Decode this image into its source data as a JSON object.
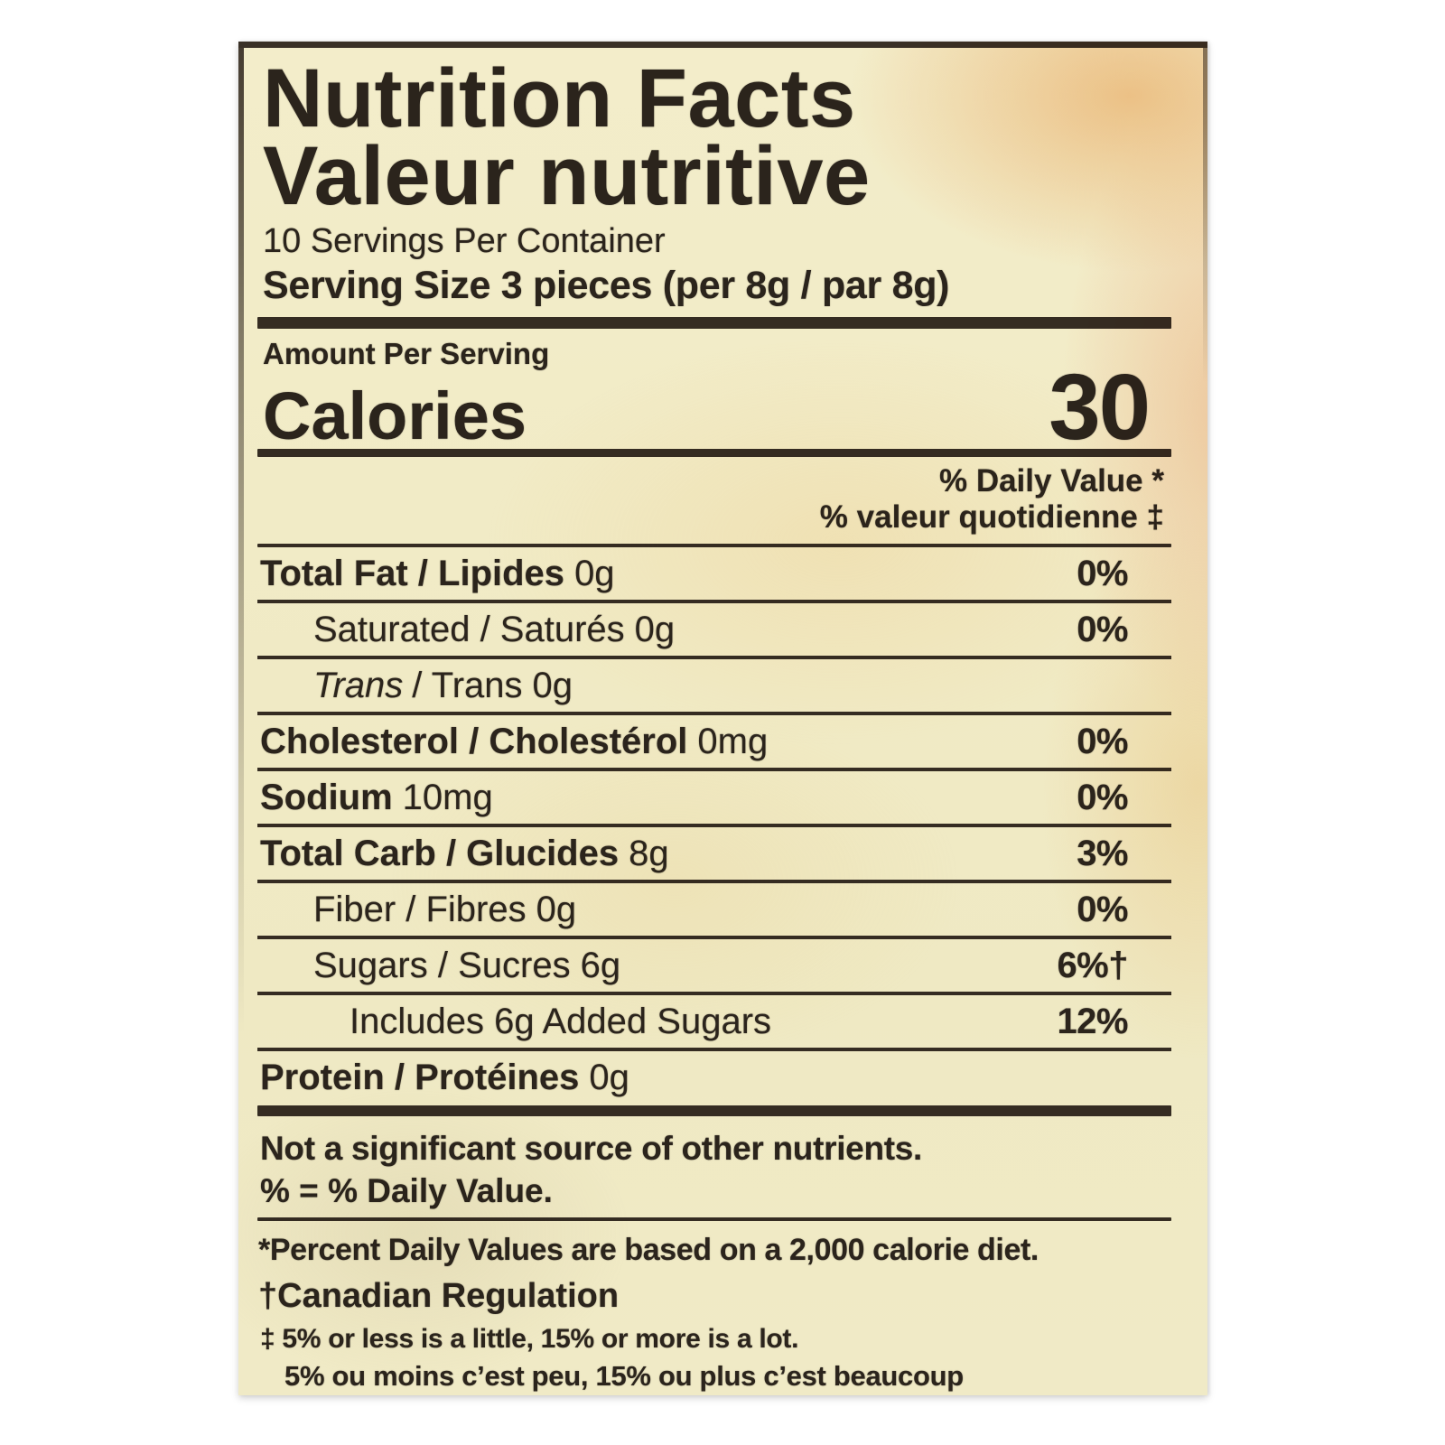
{
  "colors": {
    "page_bg": "#ffffff",
    "label_bg": "#f1ebc6",
    "ink": "#2b241c",
    "peach_tint": "#f6c494"
  },
  "label": {
    "title_en": "Nutrition Facts",
    "title_fr": "Valeur nutritive",
    "servings_per_container": "10 Servings Per Container",
    "serving_size": "Serving Size 3 pieces (per 8g / par 8g)",
    "amount_per_serving": "Amount Per Serving",
    "calories_label": "Calories",
    "calories_value": "30",
    "daily_value_en": "% Daily Value *",
    "daily_value_fr": "% valeur quotidienne ‡",
    "rows": [
      {
        "name": "Total Fat / Lipides",
        "amount": "0g",
        "dv": "0%"
      },
      {
        "name": "Saturated / Saturés",
        "amount": "0g",
        "dv": "0%"
      },
      {
        "name_italic": "Trans",
        "name": "/ Trans",
        "amount": "0g",
        "dv": ""
      },
      {
        "name": "Cholesterol / Cholestérol",
        "amount": "0mg",
        "dv": "0%"
      },
      {
        "name": "Sodium",
        "amount": "10mg",
        "dv": "0%"
      },
      {
        "name": "Total Carb / Glucides",
        "amount": "8g",
        "dv": "3%"
      },
      {
        "name": "Fiber / Fibres",
        "amount": "0g",
        "dv": "0%"
      },
      {
        "name": "Sugars / Sucres",
        "amount": "6g",
        "dv": "6%†"
      },
      {
        "name": "Includes 6g Added Sugars",
        "amount": "",
        "dv": "12%"
      },
      {
        "name": "Protein / Protéines",
        "amount": "0g",
        "dv": ""
      }
    ],
    "footnotes": {
      "not_significant": "Not a significant source of other nutrients.",
      "percent_dv": "% = % Daily Value.",
      "asterisk": "*Percent Daily Values are based on a 2,000 calorie diet.",
      "dagger": "†Canadian Regulation",
      "double_dagger_en": "‡ 5% or less is a little, 15% or more is a lot.",
      "double_dagger_fr": "5% ou moins c’est peu, 15% ou plus c’est beaucoup"
    }
  }
}
